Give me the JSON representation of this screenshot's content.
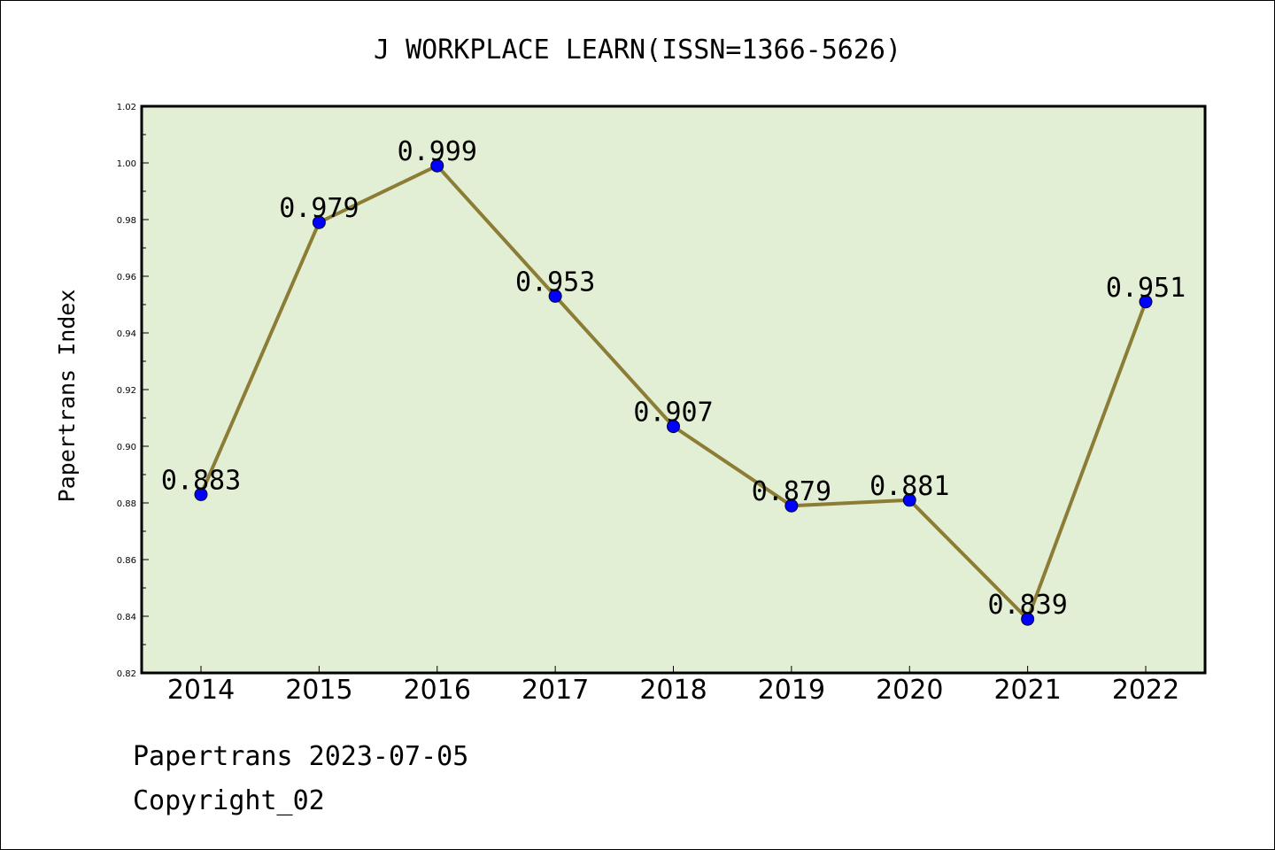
{
  "chart_data": {
    "type": "line",
    "title": "J WORKPLACE LEARN(ISSN=1366-5626)",
    "ylabel": "Papertrans Index",
    "xlabel": "",
    "categories": [
      "2014",
      "2015",
      "2016",
      "2017",
      "2018",
      "2019",
      "2020",
      "2021",
      "2022"
    ],
    "series": [
      {
        "values": [
          0.883,
          0.979,
          0.999,
          0.953,
          0.907,
          0.879,
          0.881,
          0.839,
          0.951
        ],
        "labels": [
          "0.883",
          "0.979",
          "0.999",
          "0.953",
          "0.907",
          "0.879",
          "0.881",
          "0.839",
          "0.951"
        ]
      }
    ],
    "ylim": [
      0.82,
      1.02
    ],
    "yticks": [
      "0.82",
      "0.84",
      "0.86",
      "0.88",
      "0.90",
      "0.92",
      "0.94",
      "0.96",
      "0.98",
      "1.00",
      "1.02"
    ],
    "grid": false,
    "colors": {
      "plot_background": "#e2efd4",
      "line": "#8b7d35",
      "marker": "#0000ff"
    }
  },
  "footer": {
    "source": "Papertrans 2023-07-05",
    "copyright": "Copyright_02"
  }
}
